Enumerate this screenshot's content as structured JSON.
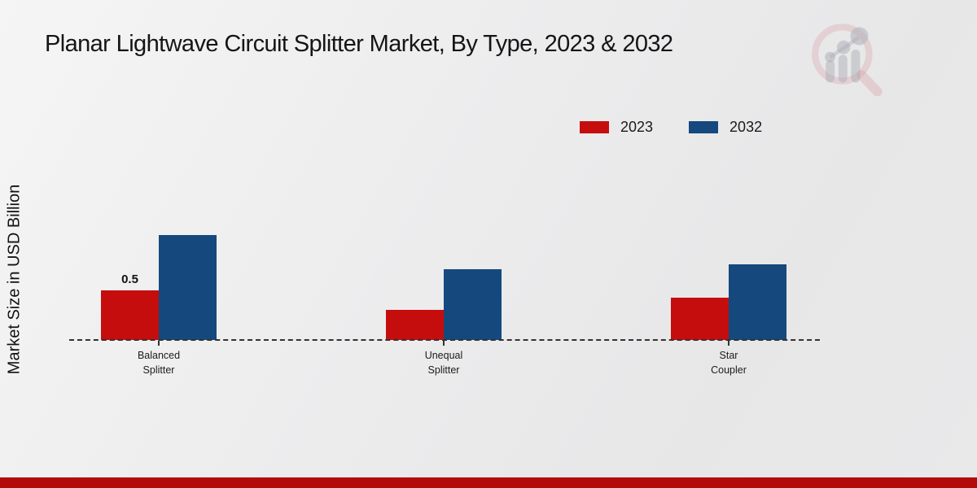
{
  "title": "Planar Lightwave Circuit Splitter Market, By Type, 2023 & 2032",
  "y_axis_label": "Market Size in USD Billion",
  "legend": {
    "items": [
      {
        "label": "2023",
        "color": "#c60d0d"
      },
      {
        "label": "2032",
        "color": "#15497e"
      }
    ]
  },
  "watermark_icon": "magnifier-bar-chart-logo",
  "footer": {
    "bar_color": "#b30a0a"
  },
  "chart_data": {
    "type": "bar",
    "categories": [
      "Balanced\nSplitter",
      "Unequal\nSplitter",
      "Star\nCoupler"
    ],
    "series": [
      {
        "name": "2023",
        "color": "#c60d0d",
        "values": [
          0.5,
          0.3,
          0.43
        ]
      },
      {
        "name": "2032",
        "color": "#15497e",
        "values": [
          1.06,
          0.71,
          0.76
        ]
      }
    ],
    "bar_labels": [
      [
        "0.5",
        "",
        ""
      ],
      [
        "",
        "",
        ""
      ]
    ],
    "title": "Planar Lightwave Circuit Splitter Market, By Type, 2023 & 2032",
    "xlabel": "",
    "ylabel": "Market Size in USD Billion",
    "ylim": [
      0,
      1.2
    ],
    "grid": false,
    "baseline_style": "dashed",
    "legend_position": "top-right"
  }
}
